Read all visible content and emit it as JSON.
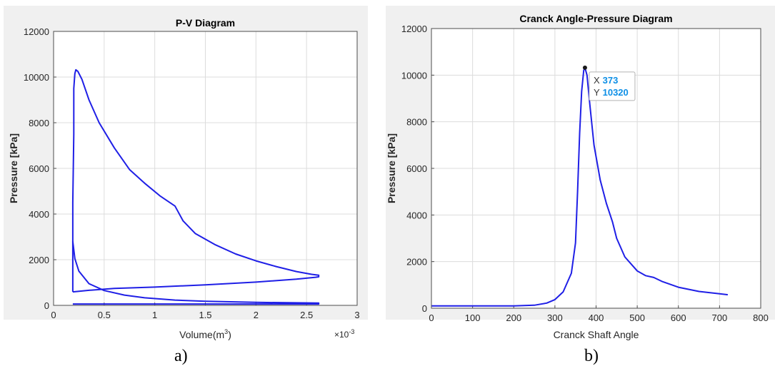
{
  "chart_data": [
    {
      "type": "line",
      "title": "P-V Diagram",
      "xlabel": "Volume(m",
      "xlabel_sup": "3",
      "xlabel_tail": ")",
      "ylabel": "Pressure [kPa]",
      "x_exponent_base": "×10",
      "x_exponent": "-3",
      "xlim": [
        0,
        3
      ],
      "ylim": [
        0,
        12000
      ],
      "xticks": [
        "0",
        "0.5",
        "1",
        "1.5",
        "2",
        "2.5",
        "3"
      ],
      "yticks": [
        "0",
        "2000",
        "4000",
        "6000",
        "8000",
        "10000",
        "12000"
      ],
      "grid": true,
      "series": [
        {
          "color": "#1f1fe6",
          "x": [
            0.19,
            0.19,
            0.19,
            0.2,
            0.2,
            0.21,
            0.22,
            0.24,
            0.28,
            0.35,
            0.45,
            0.6,
            0.75,
            0.9,
            1.05,
            1.2,
            1.28,
            1.4,
            1.6,
            1.8,
            2.0,
            2.2,
            2.4,
            2.55,
            2.62,
            2.62,
            2.59,
            2.4,
            2.0,
            1.5,
            1.0,
            0.6,
            0.35,
            0.19
          ],
          "y": [
            590,
            2000,
            4500,
            7500,
            9500,
            10150,
            10320,
            10250,
            9900,
            9000,
            8000,
            6900,
            5950,
            5350,
            4800,
            4350,
            3700,
            3150,
            2650,
            2250,
            1950,
            1700,
            1480,
            1360,
            1320,
            1250,
            1230,
            1150,
            1020,
            900,
            800,
            740,
            660,
            590
          ]
        },
        {
          "color": "#1f1fe6",
          "x": [
            0.19,
            0.21,
            0.25,
            0.35,
            0.5,
            0.7,
            0.9,
            1.2,
            1.5,
            2.0,
            2.62,
            2.62,
            2.0,
            1.2,
            0.5,
            0.19
          ],
          "y": [
            2800,
            2050,
            1500,
            950,
            650,
            450,
            330,
            230,
            180,
            130,
            100,
            60,
            60,
            60,
            60,
            60
          ]
        }
      ]
    },
    {
      "type": "line",
      "title": "Cranck Angle-Pressure Diagram",
      "xlabel": "Cranck Shaft Angle",
      "ylabel": "Pressure [kPa]",
      "xlim": [
        0,
        800
      ],
      "ylim": [
        0,
        12000
      ],
      "xticks": [
        "0",
        "100",
        "200",
        "300",
        "400",
        "500",
        "600",
        "700",
        "800"
      ],
      "yticks": [
        "0",
        "2000",
        "4000",
        "6000",
        "8000",
        "10000",
        "12000"
      ],
      "grid": true,
      "series": [
        {
          "color": "#1f1fe6",
          "x": [
            0,
            100,
            200,
            250,
            280,
            300,
            320,
            340,
            350,
            355,
            360,
            365,
            370,
            373,
            378,
            385,
            395,
            410,
            425,
            440,
            450,
            470,
            500,
            520,
            540,
            560,
            600,
            650,
            700,
            720
          ],
          "y": [
            100,
            100,
            100,
            130,
            220,
            370,
            700,
            1500,
            2800,
            5000,
            7500,
            9300,
            10200,
            10320,
            10000,
            8700,
            7000,
            5500,
            4500,
            3700,
            3000,
            2200,
            1600,
            1400,
            1320,
            1150,
            900,
            720,
            620,
            580
          ]
        }
      ],
      "datatip": {
        "x_label": "X",
        "x_value": "373",
        "y_label": "Y",
        "y_value": "10320",
        "x": 373,
        "y": 10320
      }
    }
  ],
  "captions": {
    "left": "a)",
    "right": "b)"
  }
}
